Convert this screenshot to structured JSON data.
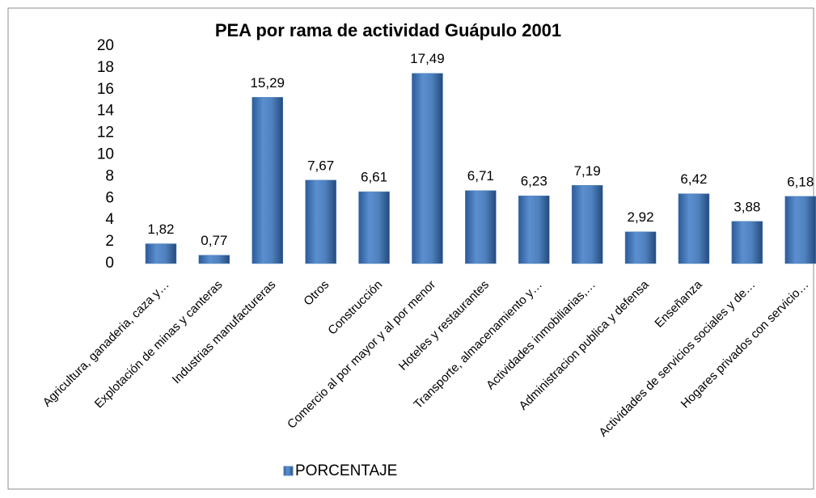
{
  "chart_data": {
    "type": "bar",
    "title": "PEA por rama de actividad  Guápulo  2001",
    "categories": [
      "Agricultura, ganaderia, caza y…",
      "Explotación de minas y canteras",
      "Industrias manufactureras",
      "Otros",
      "Construcción",
      "Comercio al por mayor y al por menor",
      "Hoteles y restaurantes",
      "Transporte, almacenamiento y…",
      "Actividades inmobiliarias,…",
      "Administracion publica y defensa",
      "Enseñanza",
      "Actividades de servicios sociales y de…",
      "Hogares privados con servicio…"
    ],
    "series": [
      {
        "name": "PORCENTAJE",
        "color": "#4f81bd",
        "values": [
          1.82,
          0.77,
          15.29,
          7.67,
          6.61,
          17.49,
          6.71,
          6.23,
          7.19,
          2.92,
          6.42,
          3.88,
          6.18
        ],
        "value_labels": [
          "1,82",
          "0,77",
          "15,29",
          "7,67",
          "6,61",
          "17,49",
          "6,71",
          "6,23",
          "7,19",
          "2,92",
          "6,42",
          "3,88",
          "6,18"
        ]
      }
    ],
    "ylim": [
      0,
      20
    ],
    "yticks": [
      0,
      2,
      4,
      6,
      8,
      10,
      12,
      14,
      16,
      18,
      20
    ],
    "grid": false,
    "legend": "bottom"
  }
}
